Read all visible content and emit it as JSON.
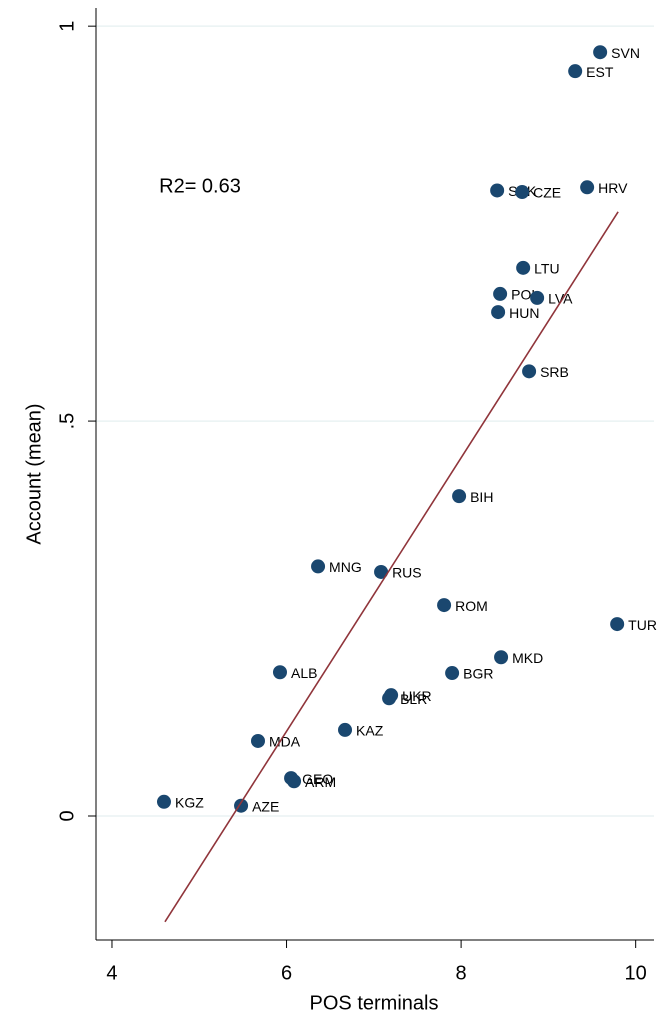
{
  "chart_data": {
    "type": "scatter",
    "xlabel": "POS terminals",
    "ylabel": "Account (mean)",
    "annotation": "R2= 0.63",
    "xlim": [
      3.817,
      10.21
    ],
    "ylim": [
      -0.157,
      1.023
    ],
    "xticks": [
      4,
      6,
      8,
      10
    ],
    "yticks": [
      0,
      {
        "value": 0.5,
        "label": ".5"
      },
      1
    ],
    "grid": true,
    "series": [
      {
        "color": "#1a476f",
        "labels": [
          "SVN",
          "EST",
          "HRV",
          "SVK",
          "CZE",
          "LTU",
          "POL",
          "LVA",
          "HUN",
          "SRB",
          "BIH",
          "MNG",
          "RUS",
          "ROM",
          "TUR",
          "MKD",
          "BGR",
          "ALB",
          "UKR",
          "BLR",
          "KAZ",
          "MDA",
          "GEO",
          "ARM",
          "KGZ",
          "AZE"
        ],
        "x": [
          9.593,
          9.307,
          9.444,
          8.413,
          8.699,
          8.711,
          8.447,
          8.871,
          8.424,
          8.779,
          7.977,
          6.361,
          7.083,
          7.805,
          9.788,
          8.458,
          7.897,
          5.925,
          7.198,
          7.175,
          6.67,
          5.673,
          6.052,
          6.086,
          4.596,
          5.479
        ],
        "values": [
          0.967,
          0.943,
          0.796,
          0.792,
          0.79,
          0.694,
          0.661,
          0.656,
          0.638,
          0.563,
          0.405,
          0.316,
          0.309,
          0.267,
          0.243,
          0.201,
          0.181,
          0.182,
          0.153,
          0.149,
          0.109,
          0.095,
          0.048,
          0.044,
          0.018,
          0.013
        ]
      }
    ],
    "fit": {
      "color": "#90353b",
      "x": [
        4.607,
        9.799
      ],
      "values": [
        -0.134,
        0.765
      ]
    }
  }
}
